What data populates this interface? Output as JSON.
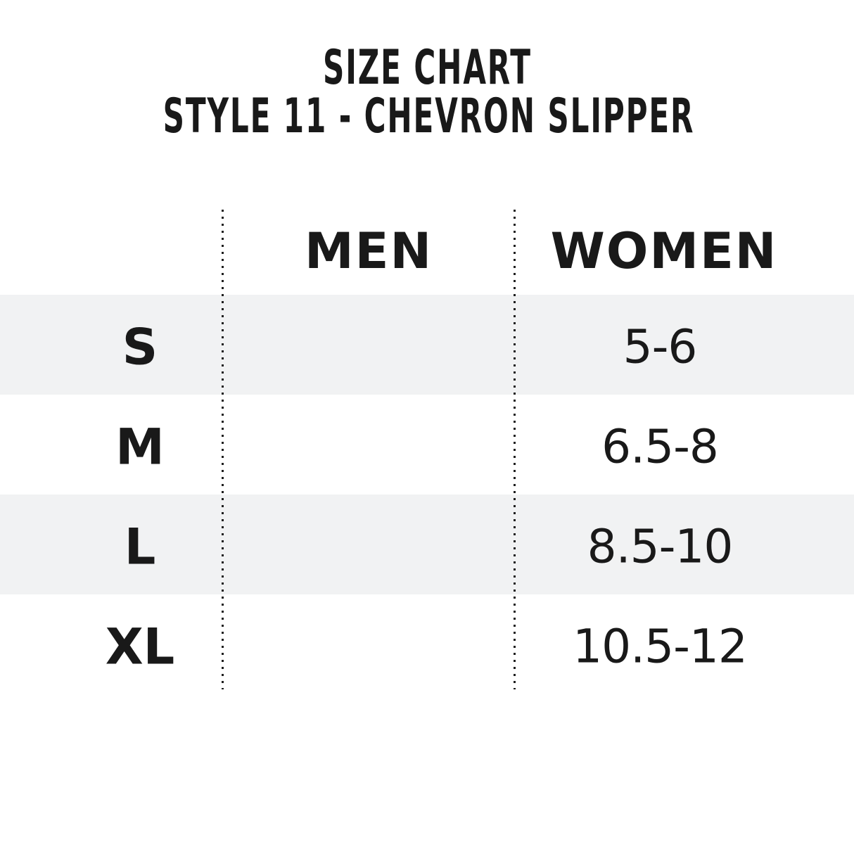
{
  "chart_data": {
    "type": "table",
    "title": "SIZE CHART",
    "subtitle": "STYLE 11 - CHEVRON SLIPPER",
    "columns": [
      "",
      "MEN",
      "WOMEN"
    ],
    "rows": [
      [
        "S",
        "",
        "5-6"
      ],
      [
        "M",
        "",
        "6.5-8"
      ],
      [
        "L",
        "",
        "8.5-10"
      ],
      [
        "XL",
        "",
        "10.5-12"
      ]
    ],
    "layout": {
      "striped_rows": [
        "S",
        "L"
      ],
      "column_dividers": "dotted-vertical-lines",
      "men_column_values_empty": true
    }
  },
  "colors": {
    "background": "#ffffff",
    "text": "#191919",
    "stripe": "#f1f2f3",
    "dotted_line": "#1e1e1e"
  }
}
